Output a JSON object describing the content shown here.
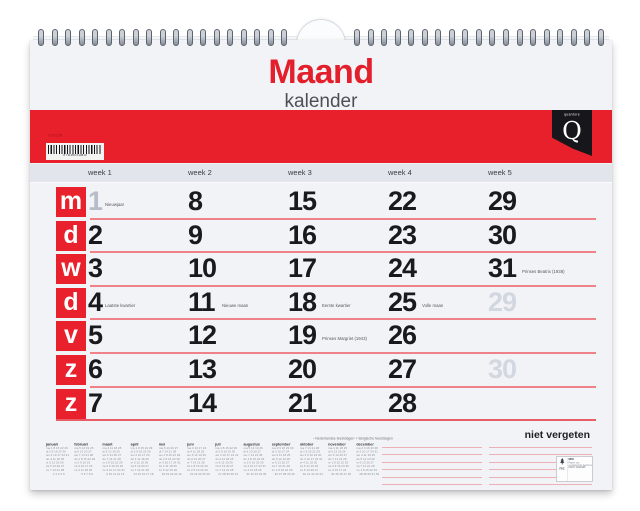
{
  "product": {
    "title": "Maand",
    "subtitle": "kalender",
    "brand_name": "quantore",
    "brand_initial": "Q",
    "article_number": "330138",
    "barcode_digits": "8 711253 013813",
    "accent_color": "#e8212c"
  },
  "month_grid": {
    "week_headers": [
      "week 1",
      "week 2",
      "week 3",
      "week 4",
      "week 5"
    ],
    "day_letters": [
      "m",
      "d",
      "w",
      "d",
      "v",
      "z",
      "z"
    ],
    "weeks": [
      {
        "label": "week 1",
        "days": [
          {
            "num": "1",
            "note": "Nieuwjaar",
            "muted": true
          },
          {
            "num": "2"
          },
          {
            "num": "3"
          },
          {
            "num": "4",
            "note": "Laatste kwartier"
          },
          {
            "num": "5"
          },
          {
            "num": "6"
          },
          {
            "num": "7"
          }
        ]
      },
      {
        "label": "week 2",
        "days": [
          {
            "num": "8"
          },
          {
            "num": "9"
          },
          {
            "num": "10"
          },
          {
            "num": "11",
            "note": "Nieuwe maan"
          },
          {
            "num": "12"
          },
          {
            "num": "13"
          },
          {
            "num": "14"
          }
        ]
      },
      {
        "label": "week 3",
        "days": [
          {
            "num": "15"
          },
          {
            "num": "16"
          },
          {
            "num": "17"
          },
          {
            "num": "18",
            "note": "Eerste kwartier"
          },
          {
            "num": "19",
            "note": "Prinses Margriet (1943)"
          },
          {
            "num": "20"
          },
          {
            "num": "21"
          }
        ]
      },
      {
        "label": "week 4",
        "days": [
          {
            "num": "22"
          },
          {
            "num": "23"
          },
          {
            "num": "24"
          },
          {
            "num": "25",
            "note": "Volle maan"
          },
          {
            "num": "26"
          },
          {
            "num": "27"
          },
          {
            "num": "28"
          }
        ]
      },
      {
        "label": "week 5",
        "days": [
          {
            "num": "29"
          },
          {
            "num": "30"
          },
          {
            "num": "31",
            "note": "Prinses Beatrix (1938)"
          },
          {
            "num": "29",
            "ghost": true
          },
          null,
          {
            "num": "30",
            "ghost": true
          },
          null
        ]
      }
    ]
  },
  "footer": {
    "legend": "▫ Nederlandse feestdagen    +  Belgische feestdagen",
    "reminder": "niet vergeten",
    "fsc": {
      "label": "FSC",
      "mix": "MIX",
      "line1": "Papier van",
      "line2": "verantwoorde herkomst",
      "code": "FSC® C012345"
    }
  },
  "year_overview": {
    "months": [
      {
        "name": "januari",
        "rows": [
          "ma 1 8 15 22 29",
          "di 2 9 16 23 30",
          "wo 3 10 17 24 31",
          "do 4 11 18 25",
          "vr 5 12 19 26",
          "za 6 13 20 27",
          "zo 7 14 21 28"
        ],
        "weeks": "1 2 3 4 5"
      },
      {
        "name": "februari",
        "rows": [
          "ma 5 12 19 26",
          "di 6 13 20 27",
          "wo 7 14 21 28",
          "do 1 8 15 22 29",
          "vr 2 9 16 23",
          "za 3 10 17 24",
          "zo 4 11 18 25"
        ],
        "weeks": "5 6 7 8 9"
      },
      {
        "name": "maart",
        "rows": [
          "ma 4 11 18 25",
          "di 5 12 19 26",
          "wo 6 13 20 27",
          "do 7 14 21 28",
          "vr 1 8 15 22 29",
          "za 2 9 16 23 30",
          "zo 3 10 17 24 31"
        ],
        "weeks": "9 10 11 12 13"
      },
      {
        "name": "april",
        "rows": [
          "ma 1 8 15 22 29",
          "di 2 9 16 23 30",
          "wo 3 10 17 24",
          "do 4 11 18 25",
          "vr 5 12 19 26",
          "za 6 13 20 27",
          "zo 7 14 21 28"
        ],
        "weeks": "14 15 16 17 18"
      },
      {
        "name": "mei",
        "rows": [
          "ma 6 13 20 27",
          "di 7 14 21 28",
          "wo 1 8 15 22 29",
          "do 2 9 16 23 30",
          "vr 3 10 17 24 31",
          "za 4 11 18 25",
          "zo 5 12 19 26"
        ],
        "weeks": "18 19 20 21 22"
      },
      {
        "name": "juni",
        "rows": [
          "ma 3 10 17 24",
          "di 4 11 18 25",
          "wo 5 12 19 26",
          "do 6 13 20 27",
          "vr 7 14 21 28",
          "za 1 8 15 22 29",
          "zo 2 9 16 23 30"
        ],
        "weeks": "22 23 24 25 26"
      },
      {
        "name": "juli",
        "rows": [
          "ma 1 8 15 22 29",
          "di 2 9 16 23 30",
          "wo 3 10 17 24 31",
          "do 4 11 18 25",
          "vr 5 12 19 26",
          "za 6 13 20 27",
          "zo 7 14 21 28"
        ],
        "weeks": "27 28 29 30 31"
      },
      {
        "name": "augustus",
        "rows": [
          "ma 5 12 19 26",
          "di 6 13 20 27",
          "wo 7 14 21 28",
          "do 1 8 15 22 29",
          "vr 2 9 16 23 30",
          "za 3 10 17 24 31",
          "zo 4 11 18 25"
        ],
        "weeks": "31 32 33 34 35"
      },
      {
        "name": "september",
        "rows": [
          "ma 2 9 16 23 30",
          "di 3 10 17 24",
          "wo 4 11 18 25",
          "do 5 12 19 26",
          "vr 6 13 20 27",
          "za 7 14 21 28",
          "zo 1 8 15 22 29"
        ],
        "weeks": "36 37 38 39 40"
      },
      {
        "name": "oktober",
        "rows": [
          "ma 7 14 21 28",
          "di 1 8 15 22 29",
          "wo 2 9 16 23 30",
          "do 3 10 17 24 31",
          "vr 4 11 18 25",
          "za 5 12 19 26",
          "zo 6 13 20 27"
        ],
        "weeks": "40 41 42 43 44"
      },
      {
        "name": "november",
        "rows": [
          "ma 4 11 18 25",
          "di 5 12 19 26",
          "wo 6 13 20 27",
          "do 7 14 21 28",
          "vr 1 8 15 22 29",
          "za 2 9 16 23 30",
          "zo 3 10 17 24"
        ],
        "weeks": "44 45 46 47 48"
      },
      {
        "name": "december",
        "rows": [
          "ma 2 9 16 23 30",
          "di 3 10 17 24 31",
          "wo 4 11 18 25",
          "do 5 12 19 26",
          "vr 6 13 20 27",
          "za 7 14 21 28",
          "zo 1 8 15 22 29"
        ],
        "weeks": "48 49 50 51 52"
      }
    ]
  }
}
